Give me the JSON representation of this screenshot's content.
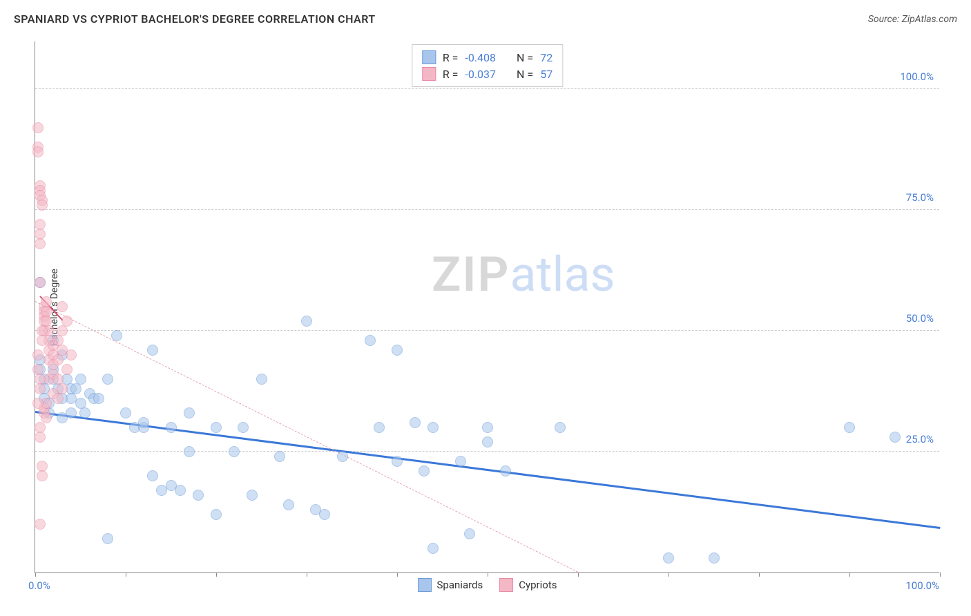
{
  "title": "SPANIARD VS CYPRIOT BACHELOR'S DEGREE CORRELATION CHART",
  "source": "Source: ZipAtlas.com",
  "watermark": {
    "part1": "ZIP",
    "part2": "atlas"
  },
  "chart": {
    "type": "scatter",
    "xlim": [
      0,
      100
    ],
    "ylim": [
      0,
      110
    ],
    "x_tick_positions": [
      0,
      10,
      20,
      30,
      40,
      50,
      60,
      70,
      80,
      90,
      100
    ],
    "x_label_min": "0.0%",
    "x_label_max": "100.0%",
    "y_gridlines": [
      {
        "value": 25,
        "label": "25.0%"
      },
      {
        "value": 50,
        "label": "50.0%"
      },
      {
        "value": 75,
        "label": "75.0%"
      },
      {
        "value": 100,
        "label": "100.0%"
      }
    ],
    "y_axis_title": "Bachelor's Degree",
    "background_color": "#ffffff",
    "grid_color": "#cccccc",
    "axis_color": "#888888",
    "tick_label_color": "#4a7fd6",
    "point_radius": 8,
    "point_opacity": 0.55,
    "series": [
      {
        "name": "Spaniards",
        "color_fill": "#a8c6ec",
        "color_stroke": "#6b9bd8",
        "trend": {
          "x1": 0,
          "y1": 33,
          "x2": 100,
          "y2": 9,
          "color": "#3b78d8",
          "width": 3,
          "dashed": false
        },
        "stats": {
          "R": "-0.408",
          "N": "72"
        },
        "points": [
          [
            0.5,
            60
          ],
          [
            0.5,
            44
          ],
          [
            0.5,
            42
          ],
          [
            1,
            40
          ],
          [
            1,
            38
          ],
          [
            1,
            36
          ],
          [
            1.5,
            33
          ],
          [
            1.5,
            35
          ],
          [
            2,
            48
          ],
          [
            2,
            40
          ],
          [
            2,
            42
          ],
          [
            2.5,
            38
          ],
          [
            3,
            45
          ],
          [
            3,
            36
          ],
          [
            3,
            32
          ],
          [
            3.5,
            40
          ],
          [
            4,
            38
          ],
          [
            4,
            36
          ],
          [
            4,
            33
          ],
          [
            4.5,
            38
          ],
          [
            5,
            35
          ],
          [
            5,
            40
          ],
          [
            5.5,
            33
          ],
          [
            6,
            37
          ],
          [
            6.5,
            36
          ],
          [
            7,
            36
          ],
          [
            8,
            40
          ],
          [
            8,
            7
          ],
          [
            9,
            49
          ],
          [
            10,
            33
          ],
          [
            11,
            30
          ],
          [
            12,
            30
          ],
          [
            12,
            31
          ],
          [
            13,
            46
          ],
          [
            13,
            20
          ],
          [
            14,
            17
          ],
          [
            15,
            30
          ],
          [
            15,
            18
          ],
          [
            16,
            17
          ],
          [
            17,
            33
          ],
          [
            17,
            25
          ],
          [
            18,
            16
          ],
          [
            20,
            30
          ],
          [
            20,
            12
          ],
          [
            22,
            25
          ],
          [
            23,
            30
          ],
          [
            24,
            16
          ],
          [
            25,
            40
          ],
          [
            27,
            24
          ],
          [
            28,
            14
          ],
          [
            30,
            52
          ],
          [
            31,
            13
          ],
          [
            32,
            12
          ],
          [
            34,
            24
          ],
          [
            37,
            48
          ],
          [
            38,
            30
          ],
          [
            40,
            46
          ],
          [
            40,
            23
          ],
          [
            42,
            31
          ],
          [
            43,
            21
          ],
          [
            44,
            30
          ],
          [
            44,
            5
          ],
          [
            47,
            23
          ],
          [
            48,
            8
          ],
          [
            50,
            30
          ],
          [
            50,
            27
          ],
          [
            52,
            21
          ],
          [
            58,
            30
          ],
          [
            70,
            3
          ],
          [
            75,
            3
          ],
          [
            90,
            30
          ],
          [
            95,
            28
          ]
        ]
      },
      {
        "name": "Cypriots",
        "color_fill": "#f4b7c6",
        "color_stroke": "#e88ba3",
        "trend": {
          "x1": 0,
          "y1": 56,
          "x2": 60,
          "y2": 0,
          "color": "#e9a0b0",
          "width": 1.5,
          "dashed": true
        },
        "short_trend": {
          "x1": 0.5,
          "y1": 57,
          "x2": 3,
          "y2": 52,
          "color": "#d64f72",
          "width": 2.5,
          "dashed": false
        },
        "stats": {
          "R": "-0.037",
          "N": "57"
        },
        "points": [
          [
            0.3,
            92
          ],
          [
            0.3,
            88
          ],
          [
            0.3,
            87
          ],
          [
            0.5,
            80
          ],
          [
            0.5,
            79
          ],
          [
            0.5,
            78
          ],
          [
            0.5,
            72
          ],
          [
            0.5,
            70
          ],
          [
            0.5,
            68
          ],
          [
            0.5,
            60
          ],
          [
            0.8,
            77
          ],
          [
            0.8,
            76
          ],
          [
            1,
            55
          ],
          [
            1,
            54
          ],
          [
            1,
            53
          ],
          [
            1,
            52
          ],
          [
            1,
            50
          ],
          [
            1.2,
            56
          ],
          [
            1.2,
            54
          ],
          [
            1.2,
            52
          ],
          [
            1.5,
            50
          ],
          [
            1.5,
            48
          ],
          [
            1.5,
            46
          ],
          [
            1.5,
            44
          ],
          [
            1.5,
            40
          ],
          [
            2,
            47
          ],
          [
            2,
            45
          ],
          [
            2,
            43
          ],
          [
            2,
            41
          ],
          [
            2,
            37
          ],
          [
            2.5,
            48
          ],
          [
            2.5,
            44
          ],
          [
            2.5,
            40
          ],
          [
            2.5,
            36
          ],
          [
            3,
            55
          ],
          [
            3,
            50
          ],
          [
            3,
            46
          ],
          [
            3,
            38
          ],
          [
            3.5,
            52
          ],
          [
            3.5,
            42
          ],
          [
            0.5,
            30
          ],
          [
            0.5,
            28
          ],
          [
            0.8,
            22
          ],
          [
            0.8,
            20
          ],
          [
            1,
            34
          ],
          [
            1,
            33
          ],
          [
            1.2,
            35
          ],
          [
            1.2,
            32
          ],
          [
            0.3,
            45
          ],
          [
            0.3,
            42
          ],
          [
            0.5,
            40
          ],
          [
            0.5,
            38
          ],
          [
            0.8,
            50
          ],
          [
            0.8,
            48
          ],
          [
            0.5,
            10
          ],
          [
            0.3,
            35
          ],
          [
            4,
            45
          ]
        ]
      }
    ],
    "legend_bottom": [
      {
        "label": "Spaniards",
        "fill": "#a8c6ec",
        "stroke": "#6b9bd8"
      },
      {
        "label": "Cypriots",
        "fill": "#f4b7c6",
        "stroke": "#e88ba3"
      }
    ]
  }
}
